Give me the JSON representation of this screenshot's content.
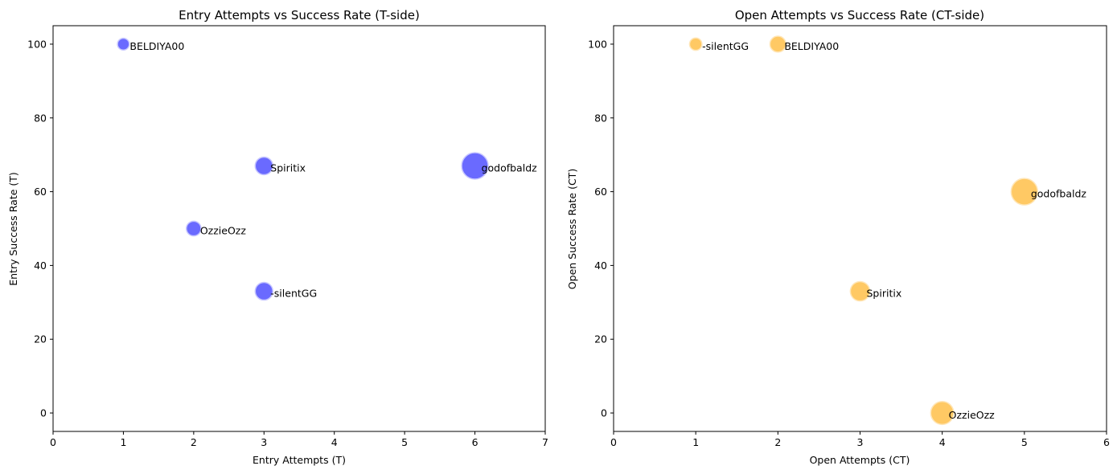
{
  "chart_data": [
    {
      "type": "scatter",
      "title": "Entry Attempts vs Success Rate (T-side)",
      "xlabel": "Entry Attempts (T)",
      "ylabel": "Entry Success Rate (T)",
      "xlim": [
        0,
        7
      ],
      "ylim": [
        -5,
        105
      ],
      "xticks": [
        0,
        1,
        2,
        3,
        4,
        5,
        6,
        7
      ],
      "yticks": [
        0,
        20,
        40,
        60,
        80,
        100
      ],
      "color": "#6262ff",
      "edge_color": "#c8c8ff",
      "grid": false,
      "points": [
        {
          "label": "BELDIYA00",
          "x": 1,
          "y": 100
        },
        {
          "label": "Spiritix",
          "x": 3,
          "y": 67
        },
        {
          "label": "godofbaldz",
          "x": 6,
          "y": 67
        },
        {
          "label": "OzzieOzz",
          "x": 2,
          "y": 50
        },
        {
          "label": "-silentGG",
          "x": 3,
          "y": 33
        }
      ]
    },
    {
      "type": "scatter",
      "title": "Open Attempts vs Success Rate (CT-side)",
      "xlabel": "Open Attempts (CT)",
      "ylabel": "Open Success Rate (CT)",
      "xlim": [
        0,
        6
      ],
      "ylim": [
        -5,
        105
      ],
      "xticks": [
        0,
        1,
        2,
        3,
        4,
        5,
        6
      ],
      "yticks": [
        0,
        20,
        40,
        60,
        80,
        100
      ],
      "color": "#ffc65c",
      "edge_color": "#ffe6b8",
      "grid": false,
      "points": [
        {
          "label": "-silentGG",
          "x": 1,
          "y": 100
        },
        {
          "label": "BELDIYA00",
          "x": 2,
          "y": 100
        },
        {
          "label": "godofbaldz",
          "x": 5,
          "y": 60
        },
        {
          "label": "Spiritix",
          "x": 3,
          "y": 33
        },
        {
          "label": "OzzieOzz",
          "x": 4,
          "y": 0
        }
      ]
    }
  ]
}
